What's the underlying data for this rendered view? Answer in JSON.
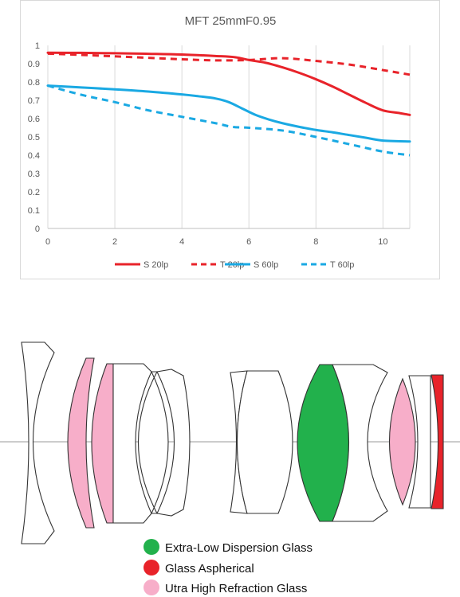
{
  "chart_data": {
    "type": "line",
    "title": "MFT  25mmF0.95",
    "xlabel": "",
    "ylabel": "",
    "xlim": [
      0,
      10.8
    ],
    "ylim": [
      0,
      1
    ],
    "x_ticks": [
      "0",
      "2",
      "4",
      "6",
      "8",
      "10"
    ],
    "y_ticks": [
      "0",
      "0.1",
      "0.2",
      "0.3",
      "0.4",
      "0.5",
      "0.6",
      "0.7",
      "0.8",
      "0.9",
      "1"
    ],
    "grid": "vertical",
    "legend": "bottom",
    "series": [
      {
        "name": "S 20lp",
        "color": "#e8232a",
        "dash": "solid",
        "x": [
          0,
          1,
          2,
          3,
          4,
          5,
          5.6,
          6,
          6.5,
          7,
          7.5,
          8,
          8.5,
          9,
          9.5,
          10,
          10.5,
          10.8
        ],
        "y": [
          0.96,
          0.959,
          0.957,
          0.954,
          0.95,
          0.942,
          0.935,
          0.92,
          0.905,
          0.88,
          0.85,
          0.815,
          0.775,
          0.73,
          0.685,
          0.645,
          0.63,
          0.62
        ]
      },
      {
        "name": "T 20lp",
        "color": "#e8232a",
        "dash": "dashed",
        "x": [
          0,
          1,
          2,
          3,
          4,
          5,
          6,
          7,
          8,
          9,
          10,
          10.8
        ],
        "y": [
          0.955,
          0.948,
          0.94,
          0.932,
          0.924,
          0.918,
          0.92,
          0.93,
          0.915,
          0.895,
          0.865,
          0.84
        ]
      },
      {
        "name": "S 60lp",
        "color": "#1aa9e3",
        "dash": "solid",
        "x": [
          0,
          1,
          2,
          3,
          4,
          4.5,
          5,
          5.4,
          5.8,
          6.2,
          6.6,
          7,
          7.5,
          8,
          8.5,
          9,
          9.5,
          10,
          10.8
        ],
        "y": [
          0.78,
          0.77,
          0.76,
          0.748,
          0.732,
          0.722,
          0.71,
          0.69,
          0.655,
          0.62,
          0.595,
          0.575,
          0.555,
          0.538,
          0.525,
          0.51,
          0.495,
          0.48,
          0.475
        ]
      },
      {
        "name": "T 60lp",
        "color": "#1aa9e3",
        "dash": "dashed",
        "x": [
          0,
          1,
          2,
          3,
          4,
          5,
          5.5,
          6,
          7,
          8,
          9,
          10,
          10.8
        ],
        "y": [
          0.78,
          0.73,
          0.69,
          0.645,
          0.61,
          0.575,
          0.555,
          0.55,
          0.535,
          0.5,
          0.46,
          0.42,
          0.4
        ]
      }
    ]
  },
  "lens_legend": [
    {
      "label": "Extra-Low Dispersion Glass",
      "color": "#22b14c"
    },
    {
      "label": "Glass Aspherical",
      "color": "#e8232a"
    },
    {
      "label": "Utra High Refraction Glass",
      "color": "#f7aec9"
    }
  ]
}
